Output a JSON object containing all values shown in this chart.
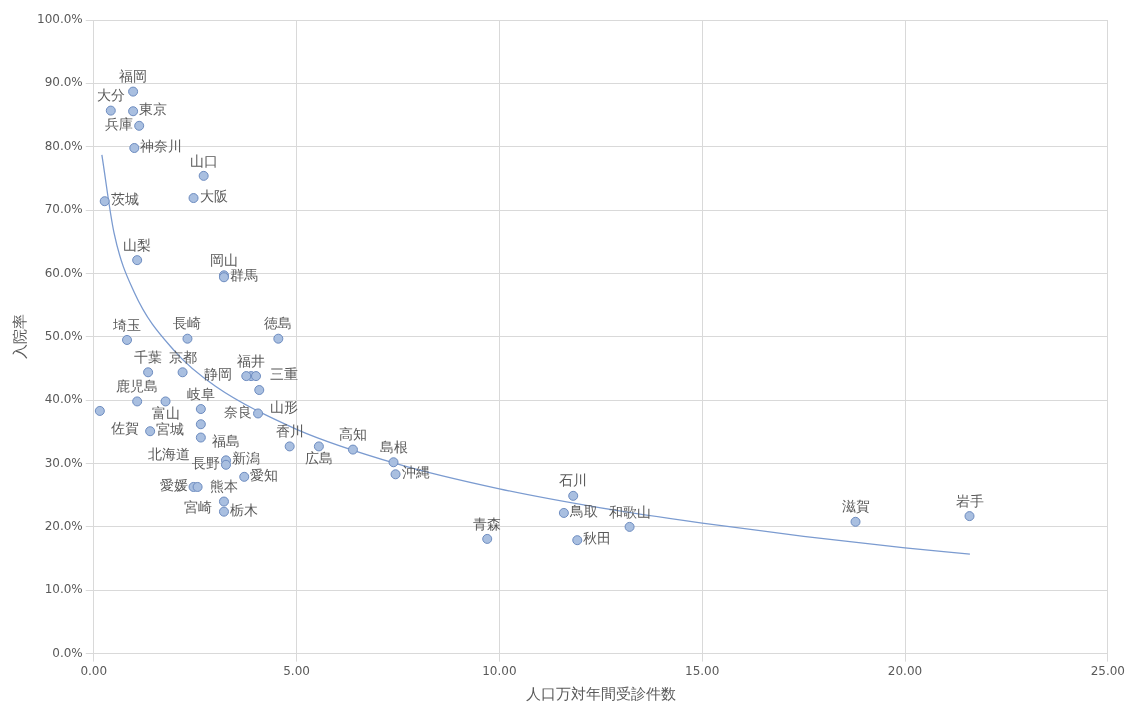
{
  "chart_data": {
    "type": "scatter",
    "xlabel": "人口万対年間受診件数",
    "ylabel": "入院率",
    "xlim": [
      0,
      25
    ],
    "xticks": [
      {
        "value": 0,
        "label": "0.00"
      },
      {
        "value": 5,
        "label": "5.00"
      },
      {
        "value": 10,
        "label": "10.00"
      },
      {
        "value": 15,
        "label": "15.00"
      },
      {
        "value": 20,
        "label": "20.00"
      },
      {
        "value": 25,
        "label": "25.00"
      }
    ],
    "ylim": [
      0,
      100
    ],
    "yticks": [
      {
        "value": 0,
        "label": "0.0%"
      },
      {
        "value": 10,
        "label": "10.0%"
      },
      {
        "value": 20,
        "label": "20.0%"
      },
      {
        "value": 30,
        "label": "30.0%"
      },
      {
        "value": 40,
        "label": "40.0%"
      },
      {
        "value": 50,
        "label": "50.0%"
      },
      {
        "value": 60,
        "label": "60.0%"
      },
      {
        "value": 70,
        "label": "70.0%"
      },
      {
        "value": 80,
        "label": "80.0%"
      },
      {
        "value": 90,
        "label": "90.0%"
      },
      {
        "value": 100,
        "label": "100.0%"
      }
    ],
    "grid": true,
    "legend": false,
    "marker": "circle",
    "series": [
      {
        "type": "scatter",
        "color": "#a9bfe0",
        "x": [
          0.97,
          0.97,
          0.42,
          1.12,
          1.0,
          0.27,
          2.71,
          2.46,
          3.21,
          1.07,
          3.21,
          0.82,
          2.31,
          4.55,
          1.34,
          2.19,
          3.88,
          4.0,
          3.76,
          2.64,
          4.08,
          1.07,
          1.77,
          4.05,
          2.64,
          0.15,
          2.64,
          4.83,
          5.55,
          6.39,
          7.39,
          1.39,
          3.26,
          3.26,
          2.46,
          3.21,
          3.71,
          2.56,
          3.21,
          7.44,
          9.7,
          11.82,
          11.59,
          13.21,
          11.92,
          18.78,
          21.59
        ],
        "values": [
          88.7,
          85.6,
          85.7,
          83.3,
          79.8,
          71.4,
          75.4,
          71.9,
          59.7,
          62.1,
          59.4,
          49.5,
          49.7,
          49.7,
          44.4,
          44.4,
          43.8,
          43.8,
          43.8,
          38.6,
          41.6,
          39.8,
          39.8,
          37.9,
          36.2,
          38.3,
          34.1,
          32.7,
          32.7,
          32.2,
          30.2,
          35.1,
          30.5,
          29.8,
          26.3,
          24.0,
          27.9,
          26.3,
          22.4,
          28.3,
          18.1,
          24.9,
          22.2,
          20.0,
          17.9,
          20.8,
          21.7
        ],
        "value_labels": [
          "福岡",
          "東京",
          "大分",
          "兵庫",
          "神奈川",
          "茨城",
          "山口",
          "大阪",
          "岡山",
          "山梨",
          "群馬",
          "埼玉",
          "長崎",
          "徳島",
          "千葉",
          "京都",
          "福井",
          "三重",
          "静岡",
          "岐阜",
          "山形",
          "鹿児島",
          "富山",
          "奈良",
          "福島",
          "佐賀",
          "北海道",
          "香川",
          "広島",
          "高知",
          "島根",
          "宮城",
          "新潟",
          "長野",
          "愛媛",
          "熊本",
          "愛知",
          "宮崎",
          "栃木",
          "沖縄",
          "青森",
          "石川",
          "鳥取",
          "和歌山",
          "秋田",
          "滋賀",
          "岩手"
        ]
      },
      {
        "type": "line",
        "color": "#7b9bd0",
        "marker": "none",
        "x": [
          0.2,
          0.5,
          1,
          2,
          3,
          5,
          7.5,
          10,
          12.5,
          15,
          17.5,
          20,
          21.6
        ],
        "values": [
          78.7,
          66.4,
          57.0,
          47.7,
          42.2,
          35.4,
          29.9,
          26.0,
          23.0,
          20.6,
          18.5,
          16.7,
          15.7
        ]
      }
    ]
  }
}
